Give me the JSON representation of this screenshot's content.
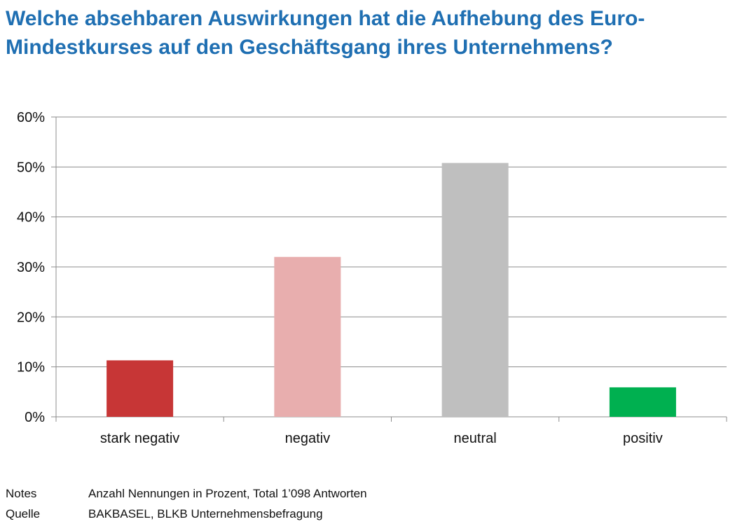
{
  "title": "Welche absehbaren Auswirkungen hat die Aufhebung des Euro-Mindestkurses auf den Geschäftsgang ihres Unternehmens?",
  "notes": {
    "notes_label": "Notes",
    "notes_text": "Anzahl Nennungen in Prozent, Total 1’098 Antworten",
    "source_label": "Quelle",
    "source_text": "BAKBASEL, BLKB Unternehmensbefragung"
  },
  "chart_data": {
    "type": "bar",
    "categories": [
      "stark negativ",
      "negativ",
      "neutral",
      "positiv"
    ],
    "values": [
      11.3,
      32.0,
      50.8,
      5.9
    ],
    "colors": [
      "#c73636",
      "#e8aeae",
      "#bfbfbf",
      "#00b050"
    ],
    "title": "Welche absehbaren Auswirkungen hat die Aufhebung des Euro-Mindestkurses auf den Geschäftsgang ihres Unternehmens?",
    "xlabel": "",
    "ylabel": "",
    "ylim": [
      0,
      60
    ],
    "yticks": [
      "0%",
      "10%",
      "20%",
      "30%",
      "40%",
      "50%",
      "60%"
    ],
    "grid": true,
    "legend": "none"
  }
}
